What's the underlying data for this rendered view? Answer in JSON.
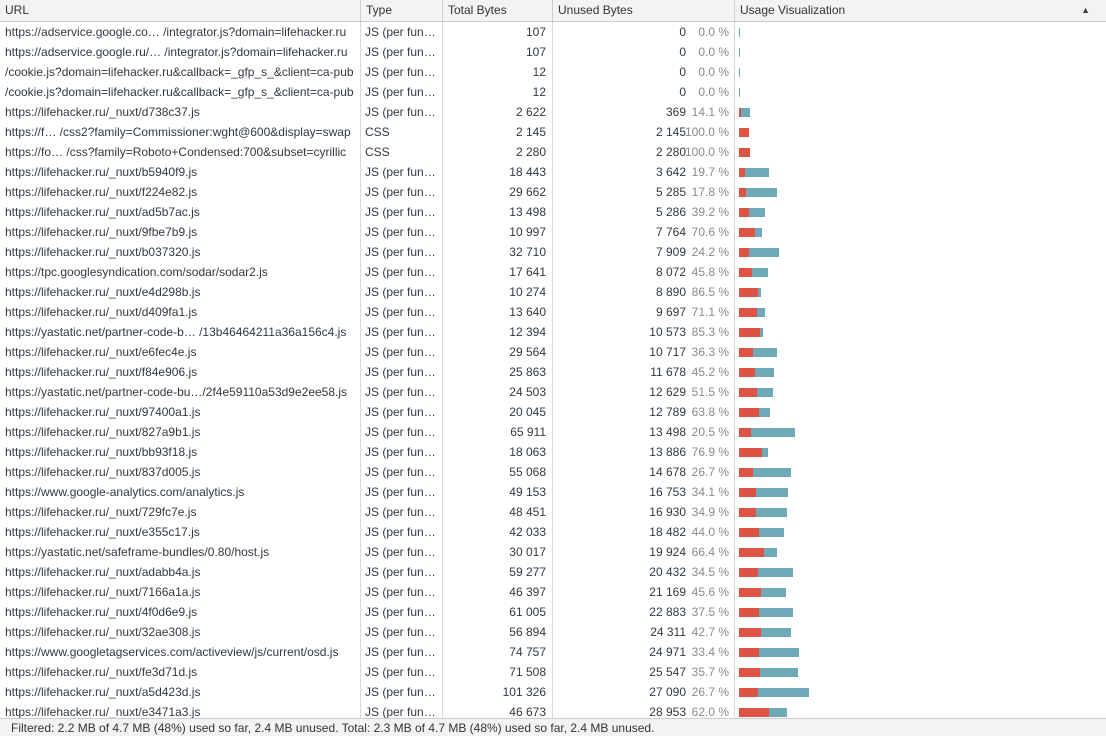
{
  "header": {
    "url": "URL",
    "type": "Type",
    "total_bytes": "Total Bytes",
    "unused_bytes": "Unused Bytes",
    "usage": "Usage Visualization",
    "sort_icon": "▲"
  },
  "colors": {
    "unused": "#de5246",
    "used": "#6fa8b7"
  },
  "rows": [
    {
      "url": "https://adservice.google.co…  /integrator.js?domain=lifehacker.ru",
      "type": "JS (per fun…",
      "total": "107",
      "unused": "0",
      "pct": "0.0 %",
      "total_n": 107,
      "unused_n": 0
    },
    {
      "url": "https://adservice.google.ru/…  /integrator.js?domain=lifehacker.ru",
      "type": "JS (per fun…",
      "total": "107",
      "unused": "0",
      "pct": "0.0 %",
      "total_n": 107,
      "unused_n": 0
    },
    {
      "url": "/cookie.js?domain=lifehacker.ru&callback=_gfp_s_&client=ca-pub",
      "type": "JS (per fun…",
      "total": "12",
      "unused": "0",
      "pct": "0.0 %",
      "total_n": 12,
      "unused_n": 0
    },
    {
      "url": "/cookie.js?domain=lifehacker.ru&callback=_gfp_s_&client=ca-pub",
      "type": "JS (per fun…",
      "total": "12",
      "unused": "0",
      "pct": "0.0 %",
      "total_n": 12,
      "unused_n": 0
    },
    {
      "url": "https://lifehacker.ru/_nuxt/d738c37.js",
      "type": "JS (per fun…",
      "total": "2 622",
      "unused": "369",
      "pct": "14.1 %",
      "total_n": 2622,
      "unused_n": 369
    },
    {
      "url": "https://f…  /css2?family=Commissioner:wght@600&display=swap",
      "type": "CSS",
      "total": "2 145",
      "unused": "2 145",
      "pct": "100.0 %",
      "total_n": 2145,
      "unused_n": 2145
    },
    {
      "url": "https://fo…  /css?family=Roboto+Condensed:700&subset=cyrillic",
      "type": "CSS",
      "total": "2 280",
      "unused": "2 280",
      "pct": "100.0 %",
      "total_n": 2280,
      "unused_n": 2280
    },
    {
      "url": "https://lifehacker.ru/_nuxt/b5940f9.js",
      "type": "JS (per fun…",
      "total": "18 443",
      "unused": "3 642",
      "pct": "19.7 %",
      "total_n": 18443,
      "unused_n": 3642
    },
    {
      "url": "https://lifehacker.ru/_nuxt/f224e82.js",
      "type": "JS (per fun…",
      "total": "29 662",
      "unused": "5 285",
      "pct": "17.8 %",
      "total_n": 29662,
      "unused_n": 5285
    },
    {
      "url": "https://lifehacker.ru/_nuxt/ad5b7ac.js",
      "type": "JS (per fun…",
      "total": "13 498",
      "unused": "5 286",
      "pct": "39.2 %",
      "total_n": 13498,
      "unused_n": 5286
    },
    {
      "url": "https://lifehacker.ru/_nuxt/9fbe7b9.js",
      "type": "JS (per fun…",
      "total": "10 997",
      "unused": "7 764",
      "pct": "70.6 %",
      "total_n": 10997,
      "unused_n": 7764
    },
    {
      "url": "https://lifehacker.ru/_nuxt/b037320.js",
      "type": "JS (per fun…",
      "total": "32 710",
      "unused": "7 909",
      "pct": "24.2 %",
      "total_n": 32710,
      "unused_n": 7909
    },
    {
      "url": "https://tpc.googlesyndication.com/sodar/sodar2.js",
      "type": "JS (per fun…",
      "total": "17 641",
      "unused": "8 072",
      "pct": "45.8 %",
      "total_n": 17641,
      "unused_n": 8072
    },
    {
      "url": "https://lifehacker.ru/_nuxt/e4d298b.js",
      "type": "JS (per fun…",
      "total": "10 274",
      "unused": "8 890",
      "pct": "86.5 %",
      "total_n": 10274,
      "unused_n": 8890
    },
    {
      "url": "https://lifehacker.ru/_nuxt/d409fa1.js",
      "type": "JS (per fun…",
      "total": "13 640",
      "unused": "9 697",
      "pct": "71.1 %",
      "total_n": 13640,
      "unused_n": 9697
    },
    {
      "url": "https://yastatic.net/partner-code-b…  /13b46464211a36a156c4.js",
      "type": "JS (per fun…",
      "total": "12 394",
      "unused": "10 573",
      "pct": "85.3 %",
      "total_n": 12394,
      "unused_n": 10573
    },
    {
      "url": "https://lifehacker.ru/_nuxt/e6fec4e.js",
      "type": "JS (per fun…",
      "total": "29 564",
      "unused": "10 717",
      "pct": "36.3 %",
      "total_n": 29564,
      "unused_n": 10717
    },
    {
      "url": "https://lifehacker.ru/_nuxt/f84e906.js",
      "type": "JS (per fun…",
      "total": "25 863",
      "unused": "11 678",
      "pct": "45.2 %",
      "total_n": 25863,
      "unused_n": 11678
    },
    {
      "url": "https://yastatic.net/partner-code-bu…/2f4e59110a53d9e2ee58.js",
      "type": "JS (per fun…",
      "total": "24 503",
      "unused": "12 629",
      "pct": "51.5 %",
      "total_n": 24503,
      "unused_n": 12629
    },
    {
      "url": "https://lifehacker.ru/_nuxt/97400a1.js",
      "type": "JS (per fun…",
      "total": "20 045",
      "unused": "12 789",
      "pct": "63.8 %",
      "total_n": 20045,
      "unused_n": 12789
    },
    {
      "url": "https://lifehacker.ru/_nuxt/827a9b1.js",
      "type": "JS (per fun…",
      "total": "65 911",
      "unused": "13 498",
      "pct": "20.5 %",
      "total_n": 65911,
      "unused_n": 13498
    },
    {
      "url": "https://lifehacker.ru/_nuxt/bb93f18.js",
      "type": "JS (per fun…",
      "total": "18 063",
      "unused": "13 886",
      "pct": "76.9 %",
      "total_n": 18063,
      "unused_n": 13886
    },
    {
      "url": "https://lifehacker.ru/_nuxt/837d005.js",
      "type": "JS (per fun…",
      "total": "55 068",
      "unused": "14 678",
      "pct": "26.7 %",
      "total_n": 55068,
      "unused_n": 14678
    },
    {
      "url": "https://www.google-analytics.com/analytics.js",
      "type": "JS (per fun…",
      "total": "49 153",
      "unused": "16 753",
      "pct": "34.1 %",
      "total_n": 49153,
      "unused_n": 16753
    },
    {
      "url": "https://lifehacker.ru/_nuxt/729fc7e.js",
      "type": "JS (per fun…",
      "total": "48 451",
      "unused": "16 930",
      "pct": "34.9 %",
      "total_n": 48451,
      "unused_n": 16930
    },
    {
      "url": "https://lifehacker.ru/_nuxt/e355c17.js",
      "type": "JS (per fun…",
      "total": "42 033",
      "unused": "18 482",
      "pct": "44.0 %",
      "total_n": 42033,
      "unused_n": 18482
    },
    {
      "url": "https://yastatic.net/safeframe-bundles/0.80/host.js",
      "type": "JS (per fun…",
      "total": "30 017",
      "unused": "19 924",
      "pct": "66.4 %",
      "total_n": 30017,
      "unused_n": 19924
    },
    {
      "url": "https://lifehacker.ru/_nuxt/adabb4a.js",
      "type": "JS (per fun…",
      "total": "59 277",
      "unused": "20 432",
      "pct": "34.5 %",
      "total_n": 59277,
      "unused_n": 20432
    },
    {
      "url": "https://lifehacker.ru/_nuxt/7166a1a.js",
      "type": "JS (per fun…",
      "total": "46 397",
      "unused": "21 169",
      "pct": "45.6 %",
      "total_n": 46397,
      "unused_n": 21169
    },
    {
      "url": "https://lifehacker.ru/_nuxt/4f0d6e9.js",
      "type": "JS (per fun…",
      "total": "61 005",
      "unused": "22 883",
      "pct": "37.5 %",
      "total_n": 61005,
      "unused_n": 22883
    },
    {
      "url": "https://lifehacker.ru/_nuxt/32ae308.js",
      "type": "JS (per fun…",
      "total": "56 894",
      "unused": "24 311",
      "pct": "42.7 %",
      "total_n": 56894,
      "unused_n": 24311
    },
    {
      "url": "https://www.googletagservices.com/activeview/js/current/osd.js",
      "type": "JS (per fun…",
      "total": "74 757",
      "unused": "24 971",
      "pct": "33.4 %",
      "total_n": 74757,
      "unused_n": 24971
    },
    {
      "url": "https://lifehacker.ru/_nuxt/fe3d71d.js",
      "type": "JS (per fun…",
      "total": "71 508",
      "unused": "25 547",
      "pct": "35.7 %",
      "total_n": 71508,
      "unused_n": 25547
    },
    {
      "url": "https://lifehacker.ru/_nuxt/a5d423d.js",
      "type": "JS (per fun…",
      "total": "101 326",
      "unused": "27 090",
      "pct": "26.7 %",
      "total_n": 101326,
      "unused_n": 27090
    },
    {
      "url": "https://lifehacker.ru/_nuxt/e3471a3.js",
      "type": "JS (per fun…",
      "total": "46 673",
      "unused": "28 953",
      "pct": "62.0 %",
      "total_n": 46673,
      "unused_n": 28953
    }
  ],
  "status": "Filtered: 2.2 MB of 4.7 MB (48%) used so far, 2.4 MB unused. Total: 2.3 MB of 4.7 MB (48%) used so far, 2.4 MB unused."
}
